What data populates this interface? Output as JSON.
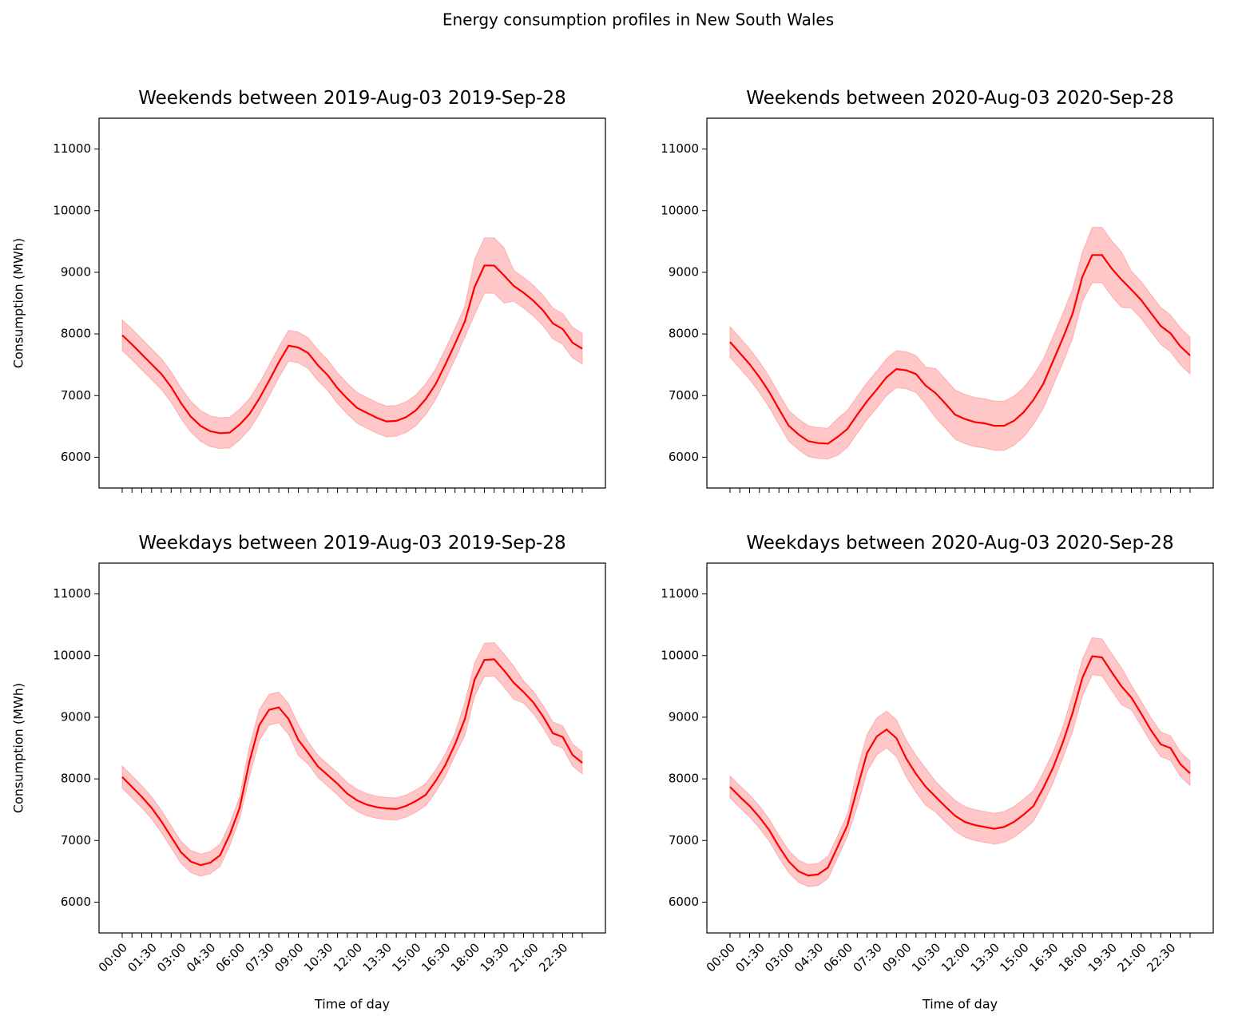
{
  "title": "Energy consumption profiles in New South Wales",
  "chart_data": [
    {
      "type": "line",
      "title": "Weekends between 2019-Aug-03 2019-Sep-28",
      "ylabel": "Consumption (MWh)",
      "categories": [
        null,
        null,
        null,
        null,
        null,
        null,
        null,
        null,
        null,
        null,
        null,
        null,
        null,
        null,
        null,
        null,
        null,
        null,
        null,
        null,
        null,
        null,
        null,
        null,
        null,
        null,
        null,
        null,
        null,
        null,
        null,
        null,
        null,
        null,
        null,
        null,
        null,
        null,
        null,
        null,
        null,
        null,
        null,
        null,
        null,
        null,
        null,
        null
      ],
      "ylim": [
        5500,
        11500
      ],
      "yticks": [
        6000,
        7000,
        8000,
        9000,
        10000,
        11000
      ],
      "series": [
        {
          "color": "#ff0000",
          "band_color": "#ff0000",
          "values": [
            7980,
            7830,
            7670,
            7510,
            7350,
            7140,
            6880,
            6660,
            6510,
            6420,
            6390,
            6400,
            6530,
            6700,
            6950,
            7240,
            7540,
            7810,
            7780,
            7690,
            7490,
            7330,
            7120,
            6950,
            6800,
            6720,
            6640,
            6580,
            6590,
            6650,
            6760,
            6940,
            7180,
            7500,
            7840,
            8200,
            8760,
            9110,
            9110,
            8950,
            8780,
            8670,
            8540,
            8380,
            8170,
            8080,
            7860,
            7760
          ],
          "lower": [
            7730,
            7580,
            7420,
            7260,
            7100,
            6890,
            6630,
            6410,
            6260,
            6170,
            6140,
            6150,
            6280,
            6450,
            6700,
            6990,
            7290,
            7560,
            7530,
            7440,
            7240,
            7080,
            6870,
            6700,
            6550,
            6470,
            6390,
            6330,
            6340,
            6400,
            6510,
            6690,
            6930,
            7250,
            7590,
            7950,
            8310,
            8660,
            8660,
            8500,
            8530,
            8420,
            8290,
            8130,
            7920,
            7830,
            7610,
            7510
          ],
          "upper": [
            8230,
            8080,
            7920,
            7760,
            7600,
            7390,
            7130,
            6910,
            6760,
            6670,
            6640,
            6650,
            6780,
            6950,
            7200,
            7490,
            7790,
            8060,
            8030,
            7940,
            7740,
            7580,
            7370,
            7200,
            7050,
            6970,
            6890,
            6830,
            6840,
            6900,
            7010,
            7190,
            7430,
            7750,
            8090,
            8450,
            9210,
            9560,
            9560,
            9400,
            9030,
            8920,
            8790,
            8630,
            8420,
            8330,
            8110,
            8010
          ]
        }
      ]
    },
    {
      "type": "line",
      "title": "Weekends between 2020-Aug-03 2020-Sep-28",
      "categories": [
        null,
        null,
        null,
        null,
        null,
        null,
        null,
        null,
        null,
        null,
        null,
        null,
        null,
        null,
        null,
        null,
        null,
        null,
        null,
        null,
        null,
        null,
        null,
        null,
        null,
        null,
        null,
        null,
        null,
        null,
        null,
        null,
        null,
        null,
        null,
        null,
        null,
        null,
        null,
        null,
        null,
        null,
        null,
        null,
        null,
        null,
        null,
        null
      ],
      "ylim": [
        5500,
        11500
      ],
      "yticks": [
        6000,
        7000,
        8000,
        9000,
        10000,
        11000
      ],
      "series": [
        {
          "color": "#ff0000",
          "band_color": "#ff0000",
          "values": [
            7870,
            7690,
            7510,
            7300,
            7060,
            6780,
            6510,
            6370,
            6260,
            6230,
            6220,
            6330,
            6460,
            6690,
            6910,
            7100,
            7300,
            7430,
            7410,
            7350,
            7160,
            7040,
            6870,
            6690,
            6620,
            6570,
            6550,
            6510,
            6510,
            6590,
            6730,
            6930,
            7190,
            7560,
            7930,
            8330,
            8930,
            9280,
            9280,
            9060,
            8880,
            8720,
            8550,
            8340,
            8130,
            8010,
            7800,
            7650
          ],
          "lower": [
            7620,
            7440,
            7260,
            7050,
            6810,
            6530,
            6260,
            6120,
            6010,
            5980,
            5970,
            6030,
            6160,
            6390,
            6610,
            6800,
            7000,
            7130,
            7110,
            7050,
            6860,
            6640,
            6470,
            6290,
            6220,
            6170,
            6150,
            6110,
            6110,
            6190,
            6330,
            6530,
            6790,
            7160,
            7530,
            7930,
            8530,
            8830,
            8830,
            8610,
            8430,
            8420,
            8250,
            8040,
            7830,
            7710,
            7500,
            7350
          ],
          "upper": [
            8120,
            7940,
            7760,
            7550,
            7310,
            7030,
            6760,
            6620,
            6510,
            6480,
            6470,
            6630,
            6760,
            6990,
            7210,
            7400,
            7600,
            7730,
            7710,
            7650,
            7460,
            7440,
            7270,
            7090,
            7020,
            6970,
            6950,
            6910,
            6910,
            6990,
            7130,
            7330,
            7590,
            7960,
            8330,
            8730,
            9330,
            9730,
            9730,
            9510,
            9330,
            9020,
            8850,
            8640,
            8430,
            8310,
            8100,
            7950
          ]
        }
      ]
    },
    {
      "type": "line",
      "title": "Weekdays between 2019-Aug-03 2019-Sep-28",
      "ylabel": "Consumption (MWh)",
      "xlabel": "Time of day",
      "categories": [
        "00:00",
        null,
        null,
        "01:30",
        null,
        null,
        "03:00",
        null,
        null,
        "04:30",
        null,
        null,
        "06:00",
        null,
        null,
        "07:30",
        null,
        null,
        "09:00",
        null,
        null,
        "10:30",
        null,
        null,
        "12:00",
        null,
        null,
        "13:30",
        null,
        null,
        "15:00",
        null,
        null,
        "16:30",
        null,
        null,
        "18:00",
        null,
        null,
        "19:30",
        null,
        null,
        "21:00",
        null,
        null,
        "22:30",
        null,
        null
      ],
      "ylim": [
        5500,
        11500
      ],
      "yticks": [
        6000,
        7000,
        8000,
        9000,
        10000,
        11000
      ],
      "series": [
        {
          "color": "#ff0000",
          "band_color": "#ff0000",
          "values": [
            8030,
            7870,
            7710,
            7530,
            7310,
            7060,
            6810,
            6660,
            6600,
            6640,
            6760,
            7100,
            7530,
            8280,
            8870,
            9120,
            9160,
            8970,
            8630,
            8420,
            8200,
            8060,
            7920,
            7760,
            7650,
            7580,
            7540,
            7520,
            7510,
            7560,
            7640,
            7740,
            7960,
            8220,
            8560,
            8970,
            9610,
            9930,
            9940,
            9760,
            9560,
            9410,
            9240,
            9010,
            8740,
            8680,
            8390,
            8260
          ],
          "lower": [
            7850,
            7690,
            7530,
            7350,
            7130,
            6880,
            6630,
            6480,
            6420,
            6460,
            6580,
            6920,
            7350,
            8030,
            8620,
            8870,
            8910,
            8720,
            8380,
            8240,
            8020,
            7880,
            7740,
            7580,
            7470,
            7400,
            7360,
            7340,
            7330,
            7380,
            7460,
            7560,
            7780,
            8040,
            8380,
            8700,
            9340,
            9660,
            9670,
            9490,
            9290,
            9230,
            9060,
            8830,
            8560,
            8500,
            8210,
            8080
          ],
          "upper": [
            8210,
            8050,
            7890,
            7710,
            7490,
            7240,
            6990,
            6840,
            6780,
            6820,
            6940,
            7280,
            7710,
            8530,
            9120,
            9370,
            9410,
            9220,
            8880,
            8600,
            8380,
            8240,
            8100,
            7940,
            7830,
            7760,
            7720,
            7700,
            7690,
            7740,
            7820,
            7920,
            8140,
            8400,
            8740,
            9240,
            9880,
            10200,
            10210,
            10030,
            9830,
            9590,
            9420,
            9190,
            8920,
            8860,
            8570,
            8440
          ]
        }
      ]
    },
    {
      "type": "line",
      "title": "Weekdays between 2020-Aug-03 2020-Sep-28",
      "xlabel": "Time of day",
      "categories": [
        "00:00",
        null,
        null,
        "01:30",
        null,
        null,
        "03:00",
        null,
        null,
        "04:30",
        null,
        null,
        "06:00",
        null,
        null,
        "07:30",
        null,
        null,
        "09:00",
        null,
        null,
        "10:30",
        null,
        null,
        "12:00",
        null,
        null,
        "13:30",
        null,
        null,
        "15:00",
        null,
        null,
        "16:30",
        null,
        null,
        "18:00",
        null,
        null,
        "19:30",
        null,
        null,
        "21:00",
        null,
        null,
        "22:30",
        null,
        null
      ],
      "ylim": [
        5500,
        11500
      ],
      "yticks": [
        6000,
        7000,
        8000,
        9000,
        10000,
        11000
      ],
      "series": [
        {
          "color": "#ff0000",
          "band_color": "#ff0000",
          "values": [
            7870,
            7710,
            7560,
            7380,
            7170,
            6900,
            6660,
            6500,
            6430,
            6450,
            6560,
            6900,
            7250,
            7850,
            8420,
            8690,
            8800,
            8660,
            8330,
            8080,
            7870,
            7710,
            7550,
            7400,
            7300,
            7250,
            7220,
            7190,
            7220,
            7300,
            7420,
            7560,
            7850,
            8180,
            8590,
            9070,
            9640,
            9990,
            9970,
            9730,
            9500,
            9320,
            9060,
            8790,
            8560,
            8500,
            8240,
            8090
          ],
          "lower": [
            7690,
            7530,
            7380,
            7200,
            6990,
            6720,
            6480,
            6320,
            6250,
            6270,
            6380,
            6720,
            7070,
            7550,
            8120,
            8390,
            8500,
            8360,
            8030,
            7780,
            7570,
            7460,
            7300,
            7150,
            7050,
            7000,
            6970,
            6940,
            6970,
            7050,
            7170,
            7310,
            7600,
            7930,
            8340,
            8770,
            9340,
            9690,
            9670,
            9430,
            9200,
            9120,
            8860,
            8590,
            8360,
            8300,
            8040,
            7890
          ],
          "upper": [
            8050,
            7890,
            7740,
            7560,
            7350,
            7080,
            6840,
            6680,
            6610,
            6630,
            6740,
            7080,
            7430,
            8150,
            8720,
            8990,
            9100,
            8960,
            8630,
            8380,
            8170,
            7960,
            7800,
            7650,
            7550,
            7500,
            7470,
            7440,
            7470,
            7550,
            7670,
            7810,
            8100,
            8430,
            8840,
            9370,
            9940,
            10290,
            10270,
            10030,
            9800,
            9520,
            9260,
            8990,
            8760,
            8700,
            8440,
            8290
          ]
        }
      ]
    }
  ]
}
